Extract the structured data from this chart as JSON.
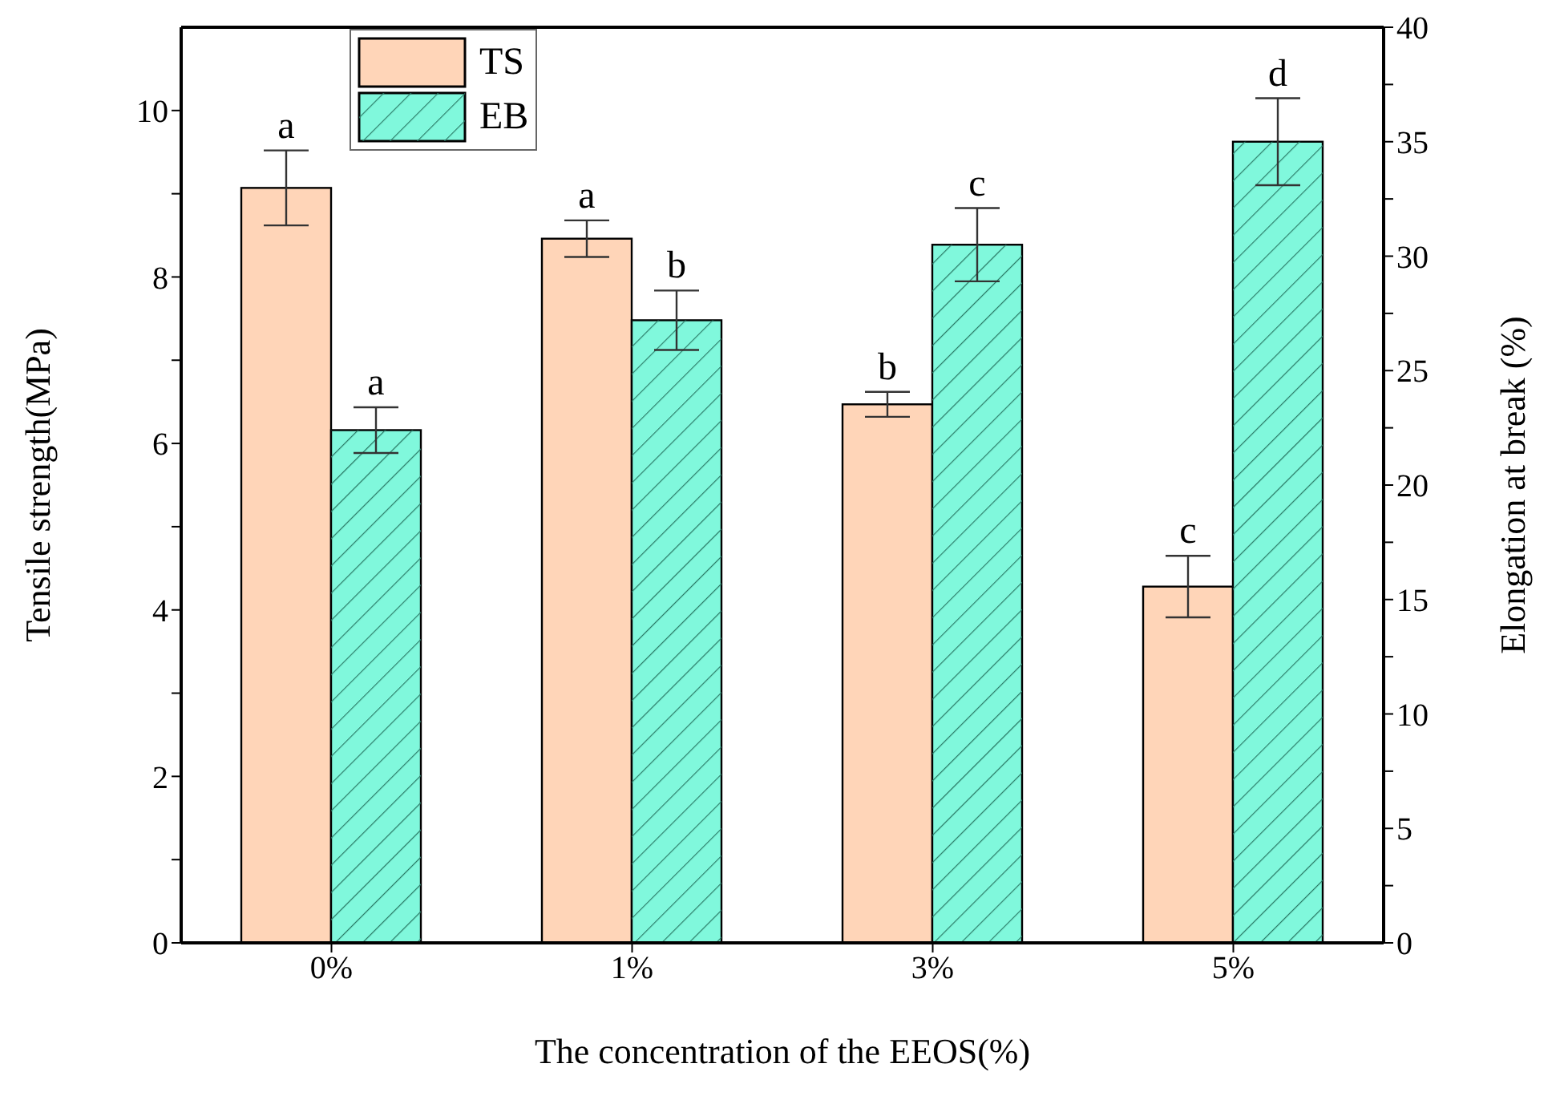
{
  "chart_data": {
    "type": "bar",
    "xlabel": "The concentration of the EEOS(%)",
    "ylabel": "Tensile strength(MPa)",
    "y2label": "Elongation at break (%)",
    "categories": [
      "0%",
      "1%",
      "3%",
      "5%"
    ],
    "series": [
      {
        "name": "TS",
        "color": "#ffd5b8",
        "values": [
          9.07,
          8.46,
          6.47,
          4.28
        ],
        "errors": [
          0.45,
          0.22,
          0.15,
          0.37
        ],
        "value_labels": [
          "a",
          "a",
          "b",
          "c"
        ]
      },
      {
        "name": "EB",
        "color": "#80f8dc",
        "axis": "y2",
        "values": [
          22.4,
          27.2,
          30.5,
          35.0
        ],
        "errors": [
          1.0,
          1.3,
          1.6,
          1.9
        ],
        "value_labels": [
          "a",
          "b",
          "c",
          "d"
        ]
      }
    ],
    "ylim": [
      0,
      11
    ],
    "yticks": [
      0,
      {
        "value": 1,
        "label": null
      },
      2,
      {
        "value": 3,
        "label": null
      },
      4,
      {
        "value": 5,
        "label": null
      },
      6,
      {
        "value": 7,
        "label": null
      },
      8,
      {
        "value": 9,
        "label": null
      },
      10
    ],
    "y2lim": [
      0,
      40
    ],
    "y2ticks": [
      0,
      {
        "value": 2.5,
        "label": null
      },
      5,
      {
        "value": 7.5,
        "label": null
      },
      10,
      {
        "value": 12.5,
        "label": null
      },
      15,
      {
        "value": 17.5,
        "label": null
      },
      20,
      {
        "value": 22.5,
        "label": null
      },
      25,
      {
        "value": 27.5,
        "label": null
      },
      30,
      {
        "value": 32.5,
        "label": null
      },
      35,
      {
        "value": 37.5,
        "label": null
      },
      40
    ],
    "legend": "top left",
    "grid": false
  }
}
